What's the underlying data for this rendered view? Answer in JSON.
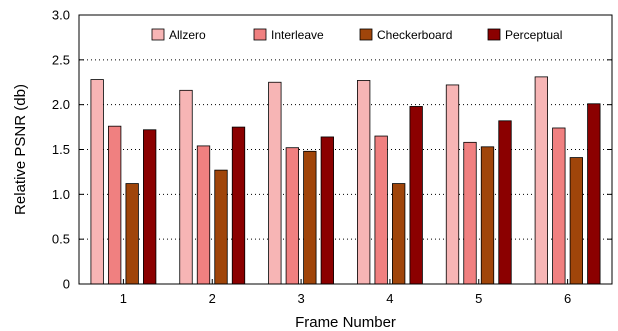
{
  "chart_data": {
    "type": "bar",
    "title": "",
    "xlabel": "Frame Number",
    "ylabel": "Relative PSNR (db)",
    "ylim": [
      0,
      3.0
    ],
    "yticks": [
      0,
      0.5,
      1.0,
      1.5,
      2.0,
      2.5,
      3.0
    ],
    "ytick_labels": [
      "0",
      "0.5",
      "1.0",
      "1.5",
      "2.0",
      "2.5",
      "3.0"
    ],
    "categories": [
      "1",
      "2",
      "3",
      "4",
      "5",
      "6"
    ],
    "grid": "horizontal dotted",
    "legend_position": "top",
    "series": [
      {
        "name": "Allzero",
        "color": "#f7b5b5",
        "values": [
          2.28,
          2.16,
          2.25,
          2.27,
          2.22,
          2.31
        ]
      },
      {
        "name": "Interleave",
        "color": "#f08080",
        "values": [
          1.76,
          1.54,
          1.52,
          1.65,
          1.58,
          1.74
        ]
      },
      {
        "name": "Checkerboard",
        "color": "#a0450a",
        "values": [
          1.12,
          1.27,
          1.48,
          1.12,
          1.53,
          1.41
        ]
      },
      {
        "name": "Perceptual",
        "color": "#8b0000",
        "values": [
          1.72,
          1.75,
          1.64,
          1.98,
          1.82,
          2.01
        ]
      }
    ]
  }
}
